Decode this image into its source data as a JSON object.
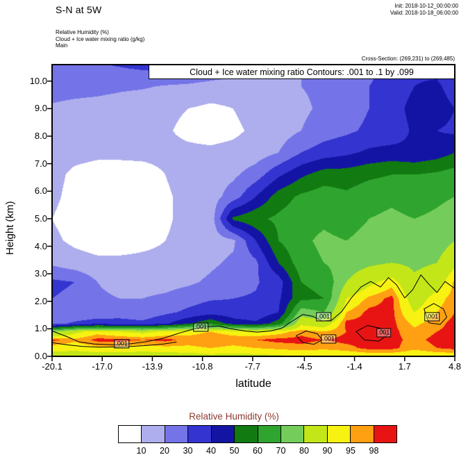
{
  "header": {
    "title": "S-N at 5W",
    "init_time": "Init: 2018-10-12_00:00:00",
    "valid_time": "Valid: 2018-10-18_06:00:00",
    "fields": [
      "Relative Humidity  (%)",
      "Cloud + Ice water mixing ratio  (g/kg)",
      "Main"
    ],
    "cross_section": "Cross-Section: (269,231) to (269,485)"
  },
  "chart_data": {
    "type": "heatmap",
    "title": "Cloud + Ice water mixing ratio Contours: .001 to .1 by .099",
    "xlabel": "latitude",
    "ylabel": "Height (km)",
    "xlim": [
      -20.1,
      4.8
    ],
    "ylim": [
      0,
      10.6
    ],
    "grid_on": false,
    "xticks": {
      "values": [
        -20.1,
        -17.0,
        -13.9,
        -10.8,
        -7.7,
        -4.5,
        -1.4,
        1.7,
        4.8
      ],
      "labels": [
        "-20.1",
        "-17.0",
        "-13.9",
        "-10.8",
        "-7.7",
        "-4.5",
        "-1.4",
        "1.7",
        "4.8"
      ]
    },
    "yticks": {
      "values": [
        0,
        1,
        2,
        3,
        4,
        5,
        6,
        7,
        8,
        9,
        10
      ],
      "labels": [
        "0.0",
        "1.0",
        "2.0",
        "3.0",
        "4.0",
        "5.0",
        "6.0",
        "7.0",
        "8.0",
        "9.0",
        "10.0"
      ]
    },
    "colorbar": {
      "title": "Relative Humidity  (%)",
      "title_color": "#8b3a30",
      "position": "bottom",
      "levels": [
        10,
        20,
        30,
        40,
        50,
        60,
        70,
        80,
        90,
        95,
        98
      ],
      "tick_labels": [
        "10",
        "20",
        "30",
        "40",
        "50",
        "60",
        "70",
        "80",
        "90",
        "95",
        "98"
      ],
      "colors": [
        "#ffffff",
        "#aeaeee",
        "#7474e8",
        "#3434d0",
        "#1414a4",
        "#117a11",
        "#2fa42f",
        "#74cd5a",
        "#c3e618",
        "#f7f212",
        "#ffa012",
        "#e81414"
      ]
    },
    "grid": {
      "lats": [
        -20.1,
        -18.7,
        -17.3,
        -15.9,
        -14.5,
        -13.1,
        -11.7,
        -10.3,
        -8.9,
        -7.5,
        -6.1,
        -4.7,
        -3.3,
        -1.9,
        -0.5,
        0.9,
        2.3,
        3.7,
        4.8
      ],
      "heights": [
        0,
        0.3,
        0.6,
        0.9,
        1.2,
        1.6,
        2.1,
        2.7,
        3.4,
        4.2,
        5.0,
        5.8,
        6.6,
        7.4,
        8.2,
        9.0,
        9.8,
        10.6
      ],
      "rh_rows_by_height": [
        [
          86,
          86,
          86,
          86,
          86,
          86,
          87,
          88,
          88,
          88,
          89,
          90,
          90,
          91,
          92,
          92,
          91,
          92,
          92
        ],
        [
          93,
          92,
          94,
          94,
          93,
          94,
          94,
          95,
          94,
          95,
          96,
          97,
          96,
          97,
          99,
          99,
          96,
          98,
          99
        ],
        [
          99,
          96,
          99,
          99,
          98,
          99,
          97,
          98,
          97,
          98,
          99,
          99,
          98,
          99,
          99,
          99,
          97,
          99,
          99
        ],
        [
          78,
          88,
          93,
          90,
          88,
          91,
          93,
          95,
          93,
          91,
          93,
          97,
          95,
          98,
          99,
          99,
          96,
          98,
          99
        ],
        [
          25,
          32,
          36,
          34,
          32,
          38,
          48,
          58,
          45,
          42,
          55,
          88,
          85,
          99,
          99,
          99,
          94,
          97,
          99
        ],
        [
          22,
          20,
          22,
          25,
          24,
          28,
          32,
          36,
          34,
          32,
          40,
          75,
          70,
          95,
          99,
          99,
          90,
          95,
          98
        ],
        [
          30,
          28,
          22,
          20,
          20,
          22,
          26,
          29,
          30,
          31,
          38,
          58,
          60,
          90,
          96,
          99,
          86,
          93,
          97
        ],
        [
          32,
          30,
          20,
          16,
          16,
          16,
          18,
          22,
          26,
          29,
          35,
          60,
          62,
          80,
          88,
          93,
          82,
          86,
          96
        ],
        [
          18,
          14,
          12,
          12,
          12,
          12,
          14,
          18,
          22,
          28,
          50,
          66,
          70,
          75,
          78,
          80,
          78,
          80,
          88
        ],
        [
          12,
          8,
          6,
          6,
          8,
          10,
          12,
          15,
          18,
          40,
          60,
          68,
          72,
          70,
          74,
          75,
          72,
          75,
          80
        ],
        [
          10,
          6,
          5,
          5,
          6,
          9,
          12,
          14,
          52,
          58,
          62,
          66,
          68,
          65,
          70,
          72,
          70,
          72,
          75
        ],
        [
          12,
          7,
          5,
          5,
          6,
          9,
          12,
          15,
          25,
          40,
          55,
          62,
          65,
          62,
          66,
          68,
          65,
          68,
          70
        ],
        [
          13,
          8,
          6,
          6,
          7,
          10,
          13,
          15,
          18,
          25,
          38,
          48,
          55,
          55,
          58,
          60,
          60,
          62,
          65
        ],
        [
          15,
          13,
          12,
          12,
          12,
          12,
          12,
          12,
          13,
          15,
          20,
          30,
          35,
          38,
          42,
          44,
          42,
          45,
          50
        ],
        [
          16,
          15,
          14,
          14,
          13,
          11,
          8,
          6,
          8,
          12,
          15,
          20,
          25,
          28,
          32,
          33,
          42,
          40,
          38
        ],
        [
          18,
          16,
          15,
          14,
          13,
          12,
          10,
          8,
          10,
          14,
          16,
          18,
          22,
          25,
          30,
          35,
          44,
          45,
          40
        ],
        [
          26,
          25,
          24,
          22,
          21,
          19,
          18,
          16,
          15,
          16,
          18,
          20,
          22,
          25,
          30,
          33,
          40,
          42,
          35
        ],
        [
          28,
          28,
          29,
          31,
          33,
          35,
          34,
          31,
          27,
          24,
          22,
          20,
          20,
          22,
          28,
          32,
          38,
          36,
          30
        ]
      ]
    },
    "cloud_contours": {
      "interval_text": ".001 to .1 by .099",
      "paths": [
        {
          "closed": false,
          "pts": [
            [
              -20.1,
              0.92
            ],
            [
              -19.2,
              0.72
            ],
            [
              -18.4,
              0.52
            ],
            [
              -17.5,
              0.45
            ],
            [
              -16.3,
              0.42
            ],
            [
              -15.2,
              0.46
            ],
            [
              -14.2,
              0.54
            ],
            [
              -13.2,
              0.66
            ],
            [
              -12.2,
              0.85
            ],
            [
              -11.3,
              1.0
            ],
            [
              -10.6,
              1.07
            ],
            [
              -9.8,
              1.1
            ],
            [
              -9.0,
              1.0
            ],
            [
              -8.2,
              0.92
            ],
            [
              -7.4,
              0.88
            ],
            [
              -6.6,
              0.92
            ],
            [
              -5.9,
              1.02
            ],
            [
              -5.2,
              1.3
            ],
            [
              -4.6,
              1.52
            ],
            [
              -4.0,
              1.46
            ],
            [
              -3.4,
              1.28
            ],
            [
              -2.8,
              1.32
            ],
            [
              -2.2,
              1.62
            ],
            [
              -1.6,
              2.12
            ],
            [
              -1.0,
              2.52
            ],
            [
              -0.4,
              2.72
            ],
            [
              0.2,
              2.52
            ],
            [
              0.7,
              2.86
            ],
            [
              1.2,
              2.6
            ],
            [
              1.7,
              2.12
            ],
            [
              2.2,
              2.42
            ],
            [
              2.7,
              2.96
            ],
            [
              3.2,
              2.62
            ],
            [
              3.7,
              2.32
            ],
            [
              4.2,
              2.72
            ],
            [
              4.8,
              2.46
            ]
          ]
        },
        {
          "closed": false,
          "pts": [
            [
              -20.1,
              0.5
            ],
            [
              -19.2,
              0.42
            ],
            [
              -18.2,
              0.36
            ],
            [
              -17.2,
              0.33
            ],
            [
              -16.2,
              0.34
            ],
            [
              -15.2,
              0.36
            ],
            [
              -14.2,
              0.4
            ],
            [
              -13.2,
              0.45
            ],
            [
              -12.4,
              0.52
            ]
          ]
        },
        {
          "closed": true,
          "pts": [
            [
              -5.0,
              0.75
            ],
            [
              -4.4,
              0.92
            ],
            [
              -3.7,
              0.82
            ],
            [
              -3.4,
              0.6
            ],
            [
              -3.9,
              0.44
            ],
            [
              -4.6,
              0.5
            ]
          ]
        },
        {
          "closed": true,
          "pts": [
            [
              -1.3,
              0.9
            ],
            [
              -0.6,
              1.12
            ],
            [
              0.2,
              1.02
            ],
            [
              0.6,
              0.76
            ],
            [
              0.1,
              0.55
            ],
            [
              -0.8,
              0.6
            ]
          ]
        },
        {
          "closed": true,
          "pts": [
            [
              2.9,
              1.72
            ],
            [
              3.5,
              1.92
            ],
            [
              4.1,
              1.72
            ],
            [
              4.3,
              1.42
            ],
            [
              3.9,
              1.16
            ],
            [
              3.2,
              1.22
            ]
          ]
        }
      ],
      "labels": [
        {
          "text": ".001",
          "lat": -15.8,
          "h": 0.45
        },
        {
          "text": ".001",
          "lat": -10.9,
          "h": 1.05
        },
        {
          "text": ".001",
          "lat": -3.3,
          "h": 1.45
        },
        {
          "text": ".001",
          "lat": -3.0,
          "h": 0.62
        },
        {
          "text": ".001",
          "lat": 0.4,
          "h": 0.85
        },
        {
          "text": ".001",
          "lat": 3.4,
          "h": 1.45
        }
      ]
    }
  }
}
